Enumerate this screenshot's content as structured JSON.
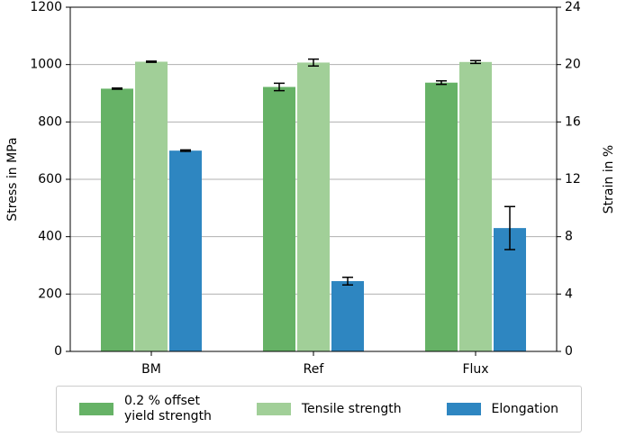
{
  "chart_data": {
    "type": "bar",
    "categories": [
      "BM",
      "Ref",
      "Flux"
    ],
    "ylabel": "Stress in MPa",
    "y2label": "Strain in %",
    "ylim": [
      0,
      1200
    ],
    "yticks": [
      0,
      200,
      400,
      600,
      800,
      1000,
      1200
    ],
    "y2lim": [
      0,
      24
    ],
    "y2ticks": [
      0,
      4,
      8,
      12,
      16,
      20,
      24
    ],
    "grid": true,
    "series": [
      {
        "name": "0.2 % offset\nyield strength",
        "color": "#66b266",
        "values": [
          916,
          922,
          937
        ],
        "errors": [
          2,
          13,
          6
        ]
      },
      {
        "name": "Tensile strength",
        "color": "#a1cf98",
        "values": [
          1010,
          1007,
          1009
        ],
        "errors": [
          2,
          12,
          5
        ]
      },
      {
        "name": "Elongation",
        "color": "#2e86c1",
        "axis": "y2",
        "values": [
          14.0,
          4.9,
          8.6
        ],
        "errors": [
          0.05,
          0.27,
          1.5
        ]
      }
    ]
  }
}
